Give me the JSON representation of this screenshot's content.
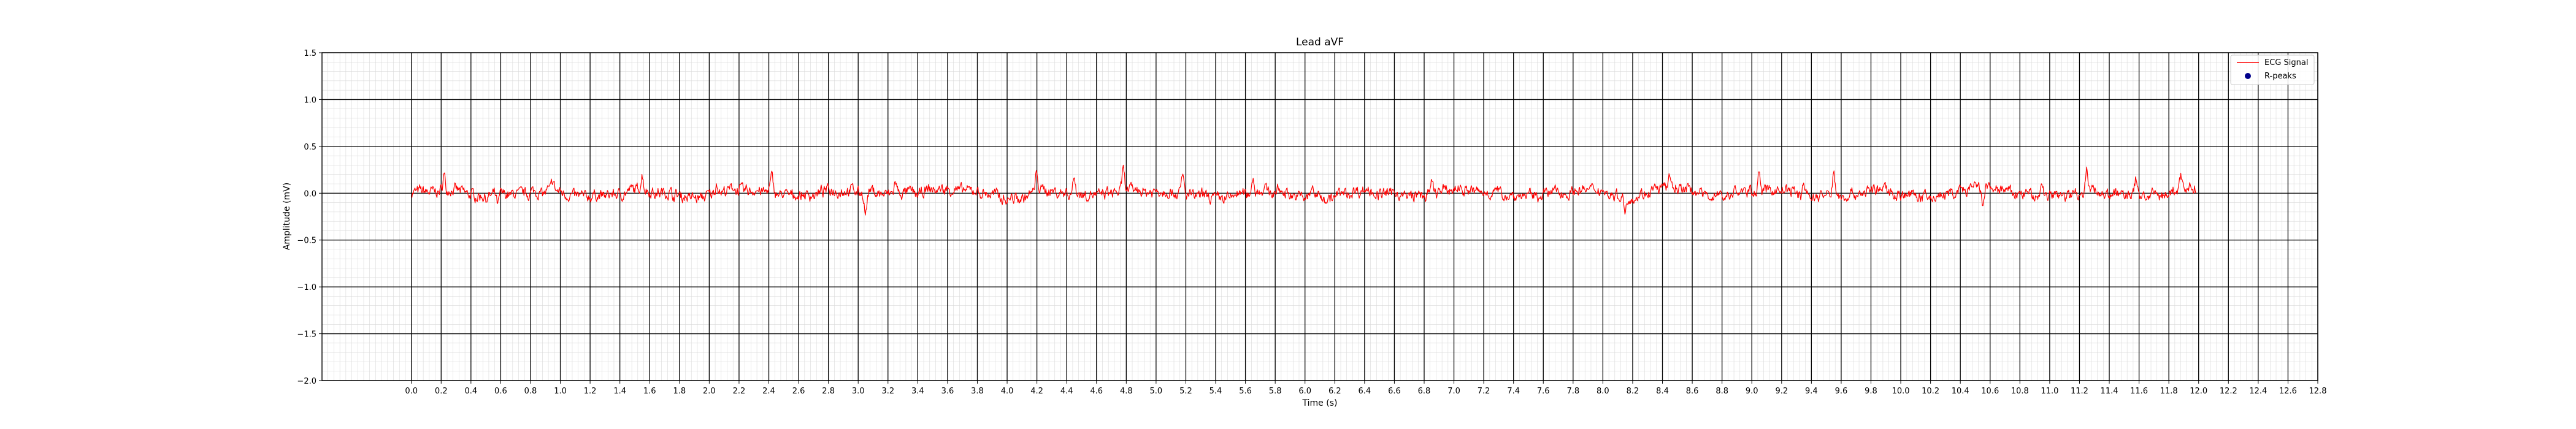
{
  "chart_data": {
    "type": "line",
    "title": "Lead aVF",
    "xlabel": "Time (s)",
    "ylabel": "Amplitude (mV)",
    "xlim": [
      -0.6,
      12.8
    ],
    "ylim": [
      -2.0,
      1.5
    ],
    "x_ticks": [
      "0.0",
      "0.2",
      "0.4",
      "0.6",
      "0.8",
      "1.0",
      "1.2",
      "1.4",
      "1.6",
      "1.8",
      "2.0",
      "2.2",
      "2.4",
      "2.6",
      "2.8",
      "3.0",
      "3.2",
      "3.4",
      "3.6",
      "3.8",
      "4.0",
      "4.2",
      "4.4",
      "4.6",
      "4.8",
      "5.0",
      "5.2",
      "5.4",
      "5.6",
      "5.8",
      "6.0",
      "6.2",
      "6.4",
      "6.6",
      "6.8",
      "7.0",
      "7.2",
      "7.4",
      "7.6",
      "7.8",
      "8.0",
      "8.2",
      "8.4",
      "8.6",
      "8.8",
      "9.0",
      "9.2",
      "9.4",
      "9.6",
      "9.8",
      "10.0",
      "10.2",
      "10.4",
      "10.6",
      "10.8",
      "11.0",
      "11.2",
      "11.4",
      "11.6",
      "11.8",
      "12.0",
      "12.2",
      "12.4",
      "12.6",
      "12.8"
    ],
    "y_ticks": [
      "1.5",
      "1.0",
      "0.5",
      "0.0",
      "−0.5",
      "−1.0",
      "−1.5",
      "−2.0"
    ],
    "grid": {
      "major": true,
      "minor": true
    },
    "legend_position": "top-right",
    "series": [
      {
        "name": "ECG Signal",
        "color": "#ff0000",
        "style": "line",
        "x_range": [
          0.0,
          11.98
        ],
        "baseline": 0.0,
        "noise_amplitude": 0.06,
        "peaks": [
          {
            "t": 0.22,
            "v": 0.22
          },
          {
            "t": 0.58,
            "v": -0.15
          },
          {
            "t": 0.95,
            "v": 0.14
          },
          {
            "t": 1.55,
            "v": 0.18
          },
          {
            "t": 2.05,
            "v": 0.13
          },
          {
            "t": 2.42,
            "v": 0.18
          },
          {
            "t": 3.05,
            "v": -0.26
          },
          {
            "t": 3.25,
            "v": 0.15
          },
          {
            "t": 4.2,
            "v": 0.25
          },
          {
            "t": 4.45,
            "v": 0.18
          },
          {
            "t": 4.78,
            "v": 0.28
          },
          {
            "t": 5.18,
            "v": 0.22
          },
          {
            "t": 5.65,
            "v": 0.17
          },
          {
            "t": 6.05,
            "v": 0.14
          },
          {
            "t": 6.85,
            "v": 0.14
          },
          {
            "t": 8.15,
            "v": -0.2
          },
          {
            "t": 8.45,
            "v": 0.17
          },
          {
            "t": 9.05,
            "v": 0.22
          },
          {
            "t": 9.35,
            "v": 0.18
          },
          {
            "t": 9.55,
            "v": 0.25
          },
          {
            "t": 10.55,
            "v": -0.18
          },
          {
            "t": 10.95,
            "v": 0.18
          },
          {
            "t": 11.25,
            "v": 0.25
          },
          {
            "t": 11.58,
            "v": 0.2
          },
          {
            "t": 11.88,
            "v": 0.16
          }
        ]
      },
      {
        "name": "R-peaks",
        "color": "#00008b",
        "style": "marker",
        "x": [],
        "y": []
      }
    ]
  }
}
